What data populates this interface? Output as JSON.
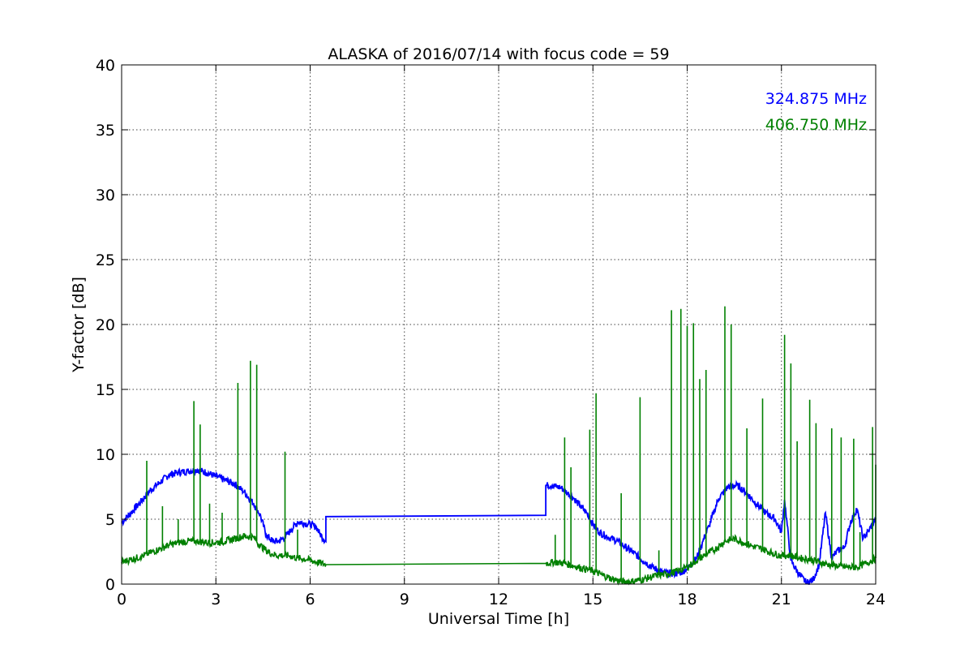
{
  "chart_data": {
    "type": "line",
    "title": "ALASKA of 2016/07/14 with focus code = 59",
    "xlabel": "Universal Time [h]",
    "ylabel": "Y-factor [dB]",
    "xlim": [
      0,
      24
    ],
    "ylim": [
      0,
      40
    ],
    "xticks": [
      0,
      3,
      6,
      9,
      12,
      15,
      18,
      21,
      24
    ],
    "yticks": [
      0,
      5,
      10,
      15,
      20,
      25,
      30,
      35,
      40
    ],
    "grid": true,
    "legend_position": "top-right",
    "series": [
      {
        "name": "324.875 MHz",
        "color": "#0000ff",
        "x": [
          0,
          0.1,
          0.3,
          0.6,
          0.9,
          1.2,
          1.5,
          1.8,
          2.1,
          2.4,
          2.7,
          3.0,
          3.3,
          3.6,
          3.9,
          4.2,
          4.4,
          4.6,
          4.8,
          5.0,
          5.2,
          5.4,
          5.6,
          5.8,
          6.0,
          6.2,
          6.3,
          6.5,
          6.5,
          13.5,
          13.5,
          13.7,
          14.0,
          14.2,
          14.4,
          14.6,
          14.8,
          15.0,
          15.2,
          15.5,
          15.8,
          16.0,
          16.3,
          16.6,
          16.9,
          17.2,
          17.5,
          17.8,
          18.0,
          18.3,
          18.5,
          18.7,
          19.0,
          19.3,
          19.6,
          19.9,
          20.2,
          20.5,
          20.8,
          21.0,
          21.1,
          21.3,
          21.6,
          21.8,
          22.0,
          22.2,
          22.4,
          22.6,
          22.8,
          23.0,
          23.2,
          23.4,
          23.6,
          23.8,
          24.0
        ],
        "y": [
          4.7,
          5.0,
          5.5,
          6.3,
          7.2,
          7.8,
          8.4,
          8.6,
          8.7,
          8.8,
          8.6,
          8.3,
          8.0,
          7.7,
          7.1,
          6.2,
          5.4,
          3.8,
          3.3,
          3.3,
          3.6,
          4.2,
          4.8,
          4.7,
          4.6,
          4.4,
          3.9,
          3.3,
          5.2,
          5.3,
          7.6,
          7.6,
          7.4,
          7.0,
          6.6,
          6.0,
          5.5,
          4.6,
          4.0,
          3.6,
          3.3,
          2.9,
          2.4,
          1.8,
          1.3,
          0.9,
          0.8,
          0.9,
          1.2,
          2.0,
          3.3,
          4.5,
          6.6,
          7.5,
          7.6,
          7.0,
          6.2,
          5.5,
          5.0,
          4.0,
          6.5,
          1.8,
          0.6,
          0.1,
          0.3,
          1.5,
          5.5,
          2.0,
          2.6,
          2.8,
          4.8,
          5.8,
          3.5,
          4.2,
          5.0
        ]
      },
      {
        "name": "406.750 MHz",
        "color": "#008000",
        "x": [
          0,
          0.3,
          0.6,
          0.9,
          1.2,
          1.5,
          1.8,
          2.1,
          2.4,
          2.7,
          3.0,
          3.3,
          3.6,
          3.9,
          4.2,
          4.4,
          4.6,
          4.8,
          5.0,
          5.3,
          5.6,
          5.9,
          6.2,
          6.5,
          13.5,
          13.8,
          14.1,
          14.4,
          14.7,
          15.0,
          15.3,
          15.6,
          15.9,
          16.2,
          16.5,
          16.8,
          17.1,
          17.4,
          17.7,
          18.0,
          18.3,
          18.6,
          18.9,
          19.2,
          19.5,
          19.8,
          20.1,
          20.4,
          20.7,
          21.0,
          21.3,
          21.6,
          21.9,
          22.2,
          22.5,
          22.8,
          23.1,
          23.4,
          23.7,
          24.0
        ],
        "y": [
          1.7,
          1.9,
          2.1,
          2.4,
          2.7,
          3.0,
          3.2,
          3.3,
          3.3,
          3.2,
          3.2,
          3.3,
          3.5,
          3.7,
          3.6,
          3.0,
          2.6,
          2.3,
          2.2,
          2.2,
          2.0,
          1.9,
          1.7,
          1.5,
          1.6,
          1.7,
          1.6,
          1.4,
          1.2,
          1.0,
          0.7,
          0.4,
          0.2,
          0.2,
          0.3,
          0.5,
          0.7,
          0.8,
          1.0,
          1.3,
          1.8,
          2.3,
          2.7,
          3.3,
          3.5,
          3.2,
          2.9,
          2.7,
          2.4,
          2.2,
          2.2,
          2.0,
          1.9,
          1.7,
          1.5,
          1.4,
          1.3,
          1.3,
          1.6,
          2.0
        ],
        "spikes": [
          [
            0.8,
            9.5
          ],
          [
            1.3,
            6.0
          ],
          [
            1.8,
            5.0
          ],
          [
            2.3,
            14.1
          ],
          [
            2.5,
            12.3
          ],
          [
            2.8,
            6.2
          ],
          [
            3.2,
            5.5
          ],
          [
            3.7,
            15.5
          ],
          [
            4.1,
            17.2
          ],
          [
            4.3,
            16.9
          ],
          [
            5.2,
            10.2
          ],
          [
            5.6,
            4.2
          ],
          [
            13.8,
            3.8
          ],
          [
            14.1,
            11.3
          ],
          [
            14.3,
            9.0
          ],
          [
            14.9,
            11.9
          ],
          [
            15.1,
            14.7
          ],
          [
            15.9,
            7.0
          ],
          [
            16.5,
            14.4
          ],
          [
            17.1,
            2.6
          ],
          [
            17.5,
            21.1
          ],
          [
            17.8,
            21.2
          ],
          [
            18.0,
            19.9
          ],
          [
            18.2,
            20.1
          ],
          [
            18.4,
            15.8
          ],
          [
            18.6,
            16.5
          ],
          [
            19.2,
            21.4
          ],
          [
            19.4,
            20.0
          ],
          [
            19.9,
            12.0
          ],
          [
            20.4,
            14.3
          ],
          [
            21.1,
            19.2
          ],
          [
            21.3,
            17.0
          ],
          [
            21.5,
            11.0
          ],
          [
            21.9,
            14.2
          ],
          [
            22.1,
            12.4
          ],
          [
            22.6,
            12.0
          ],
          [
            22.9,
            11.3
          ],
          [
            23.3,
            11.2
          ],
          [
            23.5,
            4.0
          ],
          [
            23.9,
            12.1
          ],
          [
            24.0,
            9.2
          ]
        ]
      }
    ]
  }
}
